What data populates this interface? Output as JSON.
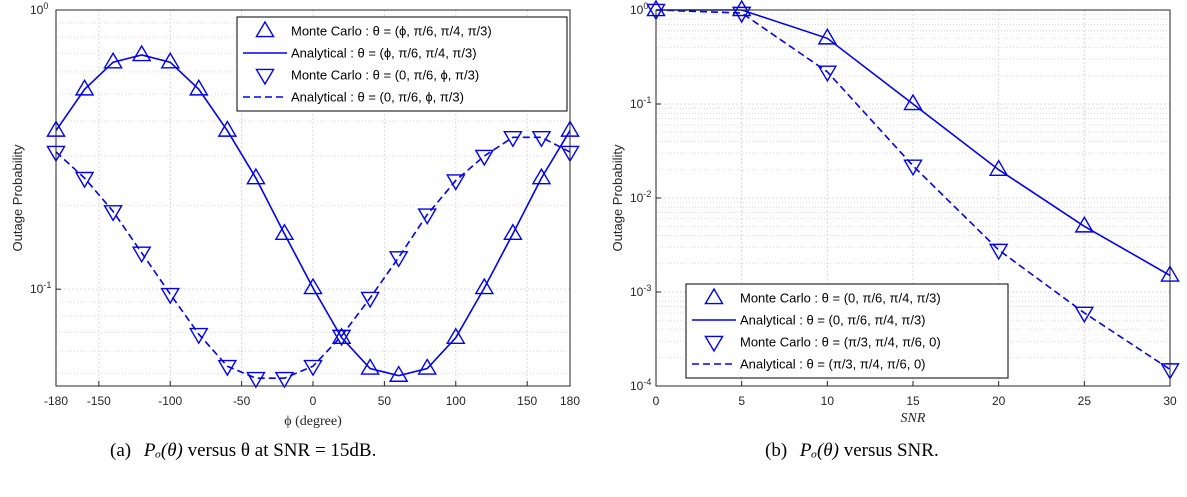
{
  "colors": {
    "series": "#0000ee",
    "axis": "#262626",
    "grid": "#d9d9d9",
    "legend_border": "#000000"
  },
  "chart_data": [
    {
      "type": "line",
      "ylabel": "Outage Probability",
      "xlabel": "ϕ (degree)",
      "xlim": [
        -180,
        180
      ],
      "ylim": [
        0.045,
        1.0
      ],
      "y_scale": "log",
      "grid": true,
      "legend_position": "top-right",
      "xticks": [
        {
          "value": -180,
          "label": "-180"
        },
        {
          "value": -150,
          "label": "-150"
        },
        {
          "value": -100,
          "label": "-100"
        },
        {
          "value": -50,
          "label": "-50"
        },
        {
          "value": 0,
          "label": "0"
        },
        {
          "value": 50,
          "label": "50"
        },
        {
          "value": 100,
          "label": "100"
        },
        {
          "value": 150,
          "label": "150"
        },
        {
          "value": 180,
          "label": "180"
        }
      ],
      "yticks": [
        {
          "value": 0.1,
          "base": "10",
          "exp": "-1"
        },
        {
          "value": 1.0,
          "base": "10",
          "exp": "0"
        }
      ],
      "caption": {
        "tag": "(a)",
        "math": "Pₒ(θ)",
        "text": "versus θ at SNR = 15dB."
      },
      "series": [
        {
          "name": "Monte Carlo : θ = (ϕ, π/6, π/4, π/3)",
          "style": "markers",
          "marker": "triangle-up",
          "x": [
            -180,
            -160,
            -140,
            -120,
            -100,
            -80,
            -60,
            -40,
            -20,
            0,
            20,
            40,
            60,
            80,
            100,
            120,
            140,
            160,
            180
          ],
          "y": [
            0.37,
            0.52,
            0.65,
            0.69,
            0.65,
            0.52,
            0.37,
            0.25,
            0.158,
            0.101,
            0.067,
            0.052,
            0.049,
            0.052,
            0.067,
            0.101,
            0.158,
            0.25,
            0.37
          ]
        },
        {
          "name": "Analytical : θ = (ϕ, π/6, π/4, π/3)",
          "style": "solid",
          "x": [
            -180,
            -160,
            -140,
            -120,
            -100,
            -80,
            -60,
            -40,
            -20,
            0,
            20,
            40,
            60,
            80,
            100,
            120,
            140,
            160,
            180
          ],
          "y": [
            0.37,
            0.52,
            0.65,
            0.69,
            0.65,
            0.52,
            0.37,
            0.25,
            0.158,
            0.101,
            0.067,
            0.052,
            0.049,
            0.052,
            0.067,
            0.101,
            0.158,
            0.25,
            0.37
          ]
        },
        {
          "name": "Monte Carlo : θ = (0, π/6, ϕ, π/3)",
          "style": "markers",
          "marker": "triangle-down",
          "x": [
            -180,
            -160,
            -140,
            -120,
            -100,
            -80,
            -60,
            -40,
            -20,
            0,
            20,
            40,
            60,
            80,
            100,
            120,
            140,
            160,
            180
          ],
          "y": [
            0.31,
            0.25,
            0.19,
            0.135,
            0.096,
            0.069,
            0.053,
            0.048,
            0.048,
            0.053,
            0.068,
            0.093,
            0.13,
            0.185,
            0.245,
            0.3,
            0.35,
            0.35,
            0.31
          ]
        },
        {
          "name": "Analytical : θ = (0, π/6, ϕ, π/3)",
          "style": "dashed",
          "x": [
            -180,
            -160,
            -140,
            -120,
            -100,
            -80,
            -60,
            -40,
            -20,
            0,
            20,
            40,
            60,
            80,
            100,
            120,
            140,
            160,
            180
          ],
          "y": [
            0.31,
            0.25,
            0.19,
            0.135,
            0.096,
            0.069,
            0.053,
            0.048,
            0.048,
            0.053,
            0.068,
            0.093,
            0.13,
            0.185,
            0.245,
            0.3,
            0.35,
            0.35,
            0.31
          ]
        }
      ]
    },
    {
      "type": "line",
      "ylabel": "Outage Probability",
      "xlabel": "SNR",
      "xlim": [
        0,
        30
      ],
      "ylim": [
        0.0001,
        1.0
      ],
      "y_scale": "log",
      "grid": true,
      "legend_position": "bottom-left",
      "xticks": [
        {
          "value": 0,
          "label": "0"
        },
        {
          "value": 5,
          "label": "5"
        },
        {
          "value": 10,
          "label": "10"
        },
        {
          "value": 15,
          "label": "15"
        },
        {
          "value": 20,
          "label": "20"
        },
        {
          "value": 25,
          "label": "25"
        },
        {
          "value": 30,
          "label": "30"
        }
      ],
      "yticks": [
        {
          "value": 0.0001,
          "base": "10",
          "exp": "-4"
        },
        {
          "value": 0.001,
          "base": "10",
          "exp": "-3"
        },
        {
          "value": 0.01,
          "base": "10",
          "exp": "-2"
        },
        {
          "value": 0.1,
          "base": "10",
          "exp": "-1"
        },
        {
          "value": 1.0,
          "base": "10",
          "exp": "0"
        }
      ],
      "caption": {
        "tag": "(b)",
        "math": "Pₒ(θ)",
        "text": "versus SNR."
      },
      "series": [
        {
          "name": "Monte Carlo : θ = (0, π/6, π/4, π/3)",
          "style": "markers",
          "marker": "triangle-up",
          "x": [
            0,
            5,
            10,
            15,
            20,
            25,
            30
          ],
          "y": [
            1.0,
            1.0,
            0.5,
            0.1,
            0.02,
            0.005,
            0.0015
          ]
        },
        {
          "name": "Analytical : θ = (0, π/6, π/4, π/3)",
          "style": "solid",
          "x": [
            0,
            5,
            10,
            15,
            20,
            25,
            30
          ],
          "y": [
            1.0,
            1.0,
            0.5,
            0.1,
            0.02,
            0.005,
            0.0015
          ]
        },
        {
          "name": "Monte Carlo : θ = (π/3, π/4, π/6, 0)",
          "style": "markers",
          "marker": "triangle-down",
          "x": [
            0,
            5,
            10,
            15,
            20,
            25,
            30
          ],
          "y": [
            1.0,
            0.93,
            0.22,
            0.022,
            0.0028,
            0.0006,
            0.00015
          ]
        },
        {
          "name": "Analytical : θ = (π/3, π/4, π/6, 0)",
          "style": "dashed",
          "x": [
            0,
            5,
            10,
            15,
            20,
            25,
            30
          ],
          "y": [
            1.0,
            0.93,
            0.22,
            0.022,
            0.0028,
            0.0006,
            0.00015
          ]
        }
      ]
    }
  ]
}
